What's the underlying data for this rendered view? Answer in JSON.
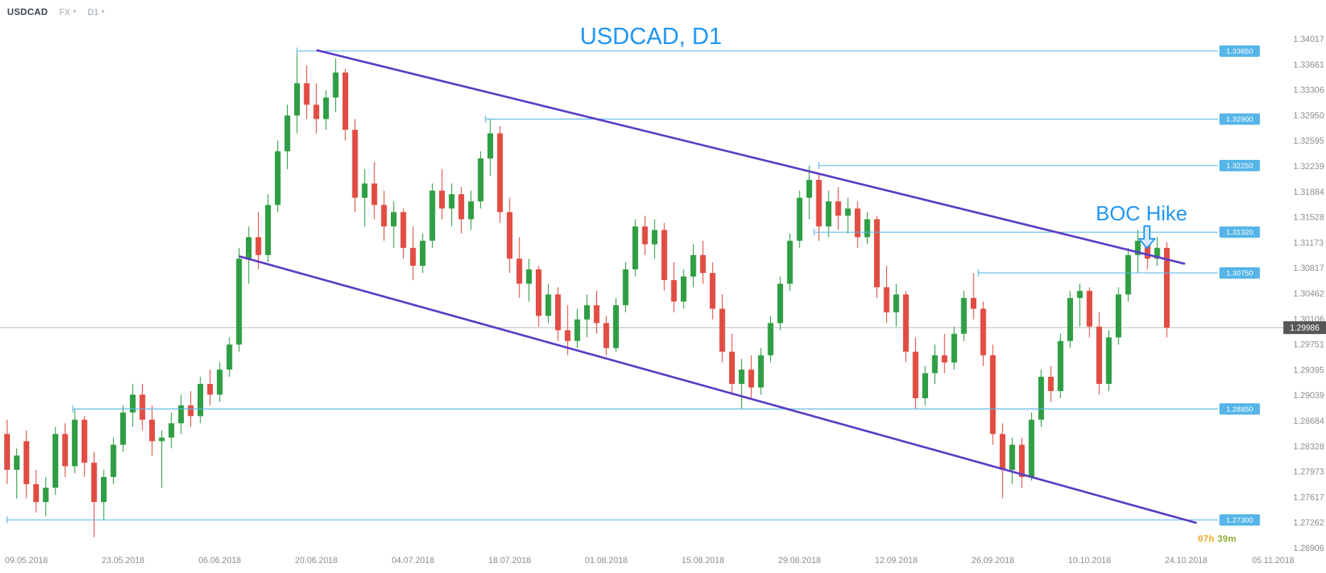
{
  "header": {
    "symbol": "USDCAD",
    "market_selector": "FX",
    "timeframe_selector": "D1"
  },
  "annotations": {
    "chart_title": "USDCAD, D1",
    "event_label": "BOC Hike"
  },
  "countdown": {
    "hours": "07h",
    "minutes": "39m"
  },
  "price_tag": {
    "value": "1.29986"
  },
  "colors": {
    "accent_blue": "#2196f3",
    "candle_up": "#2f9e44",
    "candle_down": "#e14d43",
    "level_blue": "#55b5e8",
    "trendline_purple": "#5d3fc4",
    "current_price_line_gray": "#b8b8b8",
    "price_tag_bg": "#575757",
    "axis_text_gray": "#8b8b8b",
    "countdown_hours_color": "#f5a623",
    "countdown_minutes_color": "#8fae3a"
  },
  "chart_data": {
    "type": "candlestick",
    "title": "USDCAD, D1",
    "symbol": "USDCAD",
    "timeframe": "D1",
    "annotations": [
      "USDCAD, D1",
      "BOC Hike"
    ],
    "current_price": 1.29986,
    "price_scale_labels": [
      "1.34017",
      "1.33661",
      "1.33306",
      "1.32950",
      "1.32595",
      "1.32239",
      "1.31884",
      "1.31528",
      "1.31173",
      "1.30817",
      "1.30462",
      "1.30106",
      "1.29751",
      "1.29395",
      "1.29039",
      "1.28684",
      "1.28328",
      "1.27973",
      "1.27617",
      "1.27262",
      "1.26906"
    ],
    "date_ticks": [
      {
        "label": "09.05.2018",
        "index": 2
      },
      {
        "label": "23.05.2018",
        "index": 12
      },
      {
        "label": "06.06.2018",
        "index": 22
      },
      {
        "label": "20.06.2018",
        "index": 32
      },
      {
        "label": "04.07.2018",
        "index": 42
      },
      {
        "label": "18.07.2018",
        "index": 52
      },
      {
        "label": "01.08.2018",
        "index": 62
      },
      {
        "label": "15.08.2018",
        "index": 72
      },
      {
        "label": "29.08.2018",
        "index": 82
      },
      {
        "label": "12.09.2018",
        "index": 92
      },
      {
        "label": "26.09.2018",
        "index": 102
      },
      {
        "label": "10.10.2018",
        "index": 112
      },
      {
        "label": "24.10.2018",
        "index": 122
      },
      {
        "label": "05.11.2018",
        "index": 131
      }
    ],
    "horizontal_levels": [
      {
        "label": "1.33850",
        "price": 1.3385,
        "start_index": 30
      },
      {
        "label": "1.32900",
        "price": 1.329,
        "start_index": 49.5
      },
      {
        "label": "1.32250",
        "price": 1.3225,
        "start_index": 84
      },
      {
        "label": "1.31320",
        "price": 1.3132,
        "start_index": 83.5
      },
      {
        "label": "1.30750",
        "price": 1.3075,
        "start_index": 100.5
      },
      {
        "label": "1.28850",
        "price": 1.2885,
        "start_index": 6.8
      },
      {
        "label": "1.27300",
        "price": 1.273,
        "start_index": 0
      }
    ],
    "trendlines": [
      {
        "name": "channel-upper",
        "from": {
          "index": 32.1,
          "price": 1.3386
        },
        "to": {
          "index": 121.8,
          "price": 1.3088
        }
      },
      {
        "name": "channel-lower",
        "from": {
          "index": 24.1,
          "price": 1.3098
        },
        "to": {
          "index": 123,
          "price": 1.2726
        }
      }
    ],
    "candles": [
      [
        1.285,
        1.287,
        1.278,
        1.28
      ],
      [
        1.28,
        1.283,
        1.276,
        1.282
      ],
      [
        1.284,
        1.2855,
        1.276,
        1.278
      ],
      [
        1.278,
        1.28,
        1.274,
        1.2755
      ],
      [
        1.2755,
        1.279,
        1.2735,
        1.2775
      ],
      [
        1.2775,
        1.286,
        1.2765,
        1.285
      ],
      [
        1.285,
        1.2865,
        1.279,
        1.2805
      ],
      [
        1.2805,
        1.2885,
        1.2795,
        1.287
      ],
      [
        1.287,
        1.2875,
        1.279,
        1.281
      ],
      [
        1.281,
        1.2825,
        1.2706,
        1.2755
      ],
      [
        1.2755,
        1.28,
        1.273,
        1.279
      ],
      [
        1.279,
        1.2845,
        1.278,
        1.2835
      ],
      [
        1.2835,
        1.289,
        1.2825,
        1.288
      ],
      [
        1.288,
        1.292,
        1.286,
        1.2905
      ],
      [
        1.2905,
        1.292,
        1.2855,
        1.287
      ],
      [
        1.287,
        1.289,
        1.282,
        1.284
      ],
      [
        1.284,
        1.2855,
        1.2775,
        1.2845
      ],
      [
        1.2845,
        1.288,
        1.283,
        1.2865
      ],
      [
        1.2865,
        1.2905,
        1.285,
        1.289
      ],
      [
        1.289,
        1.291,
        1.286,
        1.2875
      ],
      [
        1.2875,
        1.293,
        1.2865,
        1.292
      ],
      [
        1.292,
        1.294,
        1.289,
        1.2905
      ],
      [
        1.2905,
        1.295,
        1.2895,
        1.294
      ],
      [
        1.294,
        1.2985,
        1.293,
        1.2975
      ],
      [
        1.2975,
        1.311,
        1.2965,
        1.3095
      ],
      [
        1.3095,
        1.314,
        1.306,
        1.3125
      ],
      [
        1.3125,
        1.316,
        1.308,
        1.31
      ],
      [
        1.31,
        1.3185,
        1.309,
        1.317
      ],
      [
        1.317,
        1.326,
        1.316,
        1.3245
      ],
      [
        1.3245,
        1.331,
        1.322,
        1.3295
      ],
      [
        1.3295,
        1.3385,
        1.327,
        1.334
      ],
      [
        1.334,
        1.3365,
        1.329,
        1.331
      ],
      [
        1.331,
        1.334,
        1.327,
        1.329
      ],
      [
        1.329,
        1.333,
        1.3275,
        1.332
      ],
      [
        1.332,
        1.3375,
        1.33,
        1.3355
      ],
      [
        1.3355,
        1.336,
        1.326,
        1.3275
      ],
      [
        1.3275,
        1.329,
        1.316,
        1.318
      ],
      [
        1.318,
        1.322,
        1.314,
        1.32
      ],
      [
        1.32,
        1.323,
        1.315,
        1.317
      ],
      [
        1.317,
        1.319,
        1.312,
        1.314
      ],
      [
        1.314,
        1.3175,
        1.311,
        1.316
      ],
      [
        1.316,
        1.3165,
        1.3095,
        1.311
      ],
      [
        1.311,
        1.314,
        1.3065,
        1.3085
      ],
      [
        1.3085,
        1.313,
        1.3075,
        1.312
      ],
      [
        1.312,
        1.32,
        1.311,
        1.319
      ],
      [
        1.319,
        1.322,
        1.315,
        1.3165
      ],
      [
        1.3165,
        1.32,
        1.314,
        1.3185
      ],
      [
        1.3185,
        1.3195,
        1.313,
        1.315
      ],
      [
        1.315,
        1.319,
        1.3135,
        1.3175
      ],
      [
        1.3175,
        1.3245,
        1.3165,
        1.3235
      ],
      [
        1.3235,
        1.329,
        1.321,
        1.327
      ],
      [
        1.327,
        1.328,
        1.3145,
        1.316
      ],
      [
        1.316,
        1.318,
        1.3075,
        1.3095
      ],
      [
        1.3095,
        1.3125,
        1.304,
        1.306
      ],
      [
        1.306,
        1.3095,
        1.3035,
        1.308
      ],
      [
        1.308,
        1.3085,
        1.3,
        1.3015
      ],
      [
        1.3015,
        1.306,
        1.3005,
        1.3045
      ],
      [
        1.3045,
        1.3055,
        1.298,
        1.2995
      ],
      [
        1.2995,
        1.303,
        1.296,
        1.298
      ],
      [
        1.298,
        1.3025,
        1.297,
        1.301
      ],
      [
        1.301,
        1.3045,
        1.2985,
        1.303
      ],
      [
        1.303,
        1.305,
        1.299,
        1.3005
      ],
      [
        1.3005,
        1.3015,
        1.296,
        1.297
      ],
      [
        1.297,
        1.304,
        1.2965,
        1.303
      ],
      [
        1.303,
        1.309,
        1.302,
        1.308
      ],
      [
        1.308,
        1.315,
        1.307,
        1.314
      ],
      [
        1.314,
        1.3155,
        1.31,
        1.3115
      ],
      [
        1.3115,
        1.315,
        1.3095,
        1.3135
      ],
      [
        1.3135,
        1.3145,
        1.305,
        1.3065
      ],
      [
        1.3065,
        1.309,
        1.302,
        1.3035
      ],
      [
        1.3035,
        1.308,
        1.3025,
        1.307
      ],
      [
        1.307,
        1.3115,
        1.3055,
        1.31
      ],
      [
        1.31,
        1.312,
        1.306,
        1.3075
      ],
      [
        1.3075,
        1.309,
        1.301,
        1.3025
      ],
      [
        1.3025,
        1.3045,
        1.295,
        1.2965
      ],
      [
        1.2965,
        1.299,
        1.2905,
        1.292
      ],
      [
        1.292,
        1.2955,
        1.2885,
        1.294
      ],
      [
        1.294,
        1.296,
        1.29,
        1.2915
      ],
      [
        1.2915,
        1.297,
        1.2905,
        1.296
      ],
      [
        1.296,
        1.3015,
        1.295,
        1.3005
      ],
      [
        1.3005,
        1.307,
        1.2995,
        1.306
      ],
      [
        1.306,
        1.313,
        1.305,
        1.312
      ],
      [
        1.312,
        1.319,
        1.311,
        1.318
      ],
      [
        1.318,
        1.3225,
        1.315,
        1.3205
      ],
      [
        1.3205,
        1.3215,
        1.312,
        1.314
      ],
      [
        1.314,
        1.319,
        1.3125,
        1.3175
      ],
      [
        1.3175,
        1.3195,
        1.3135,
        1.3155
      ],
      [
        1.3155,
        1.318,
        1.313,
        1.3165
      ],
      [
        1.3165,
        1.3175,
        1.311,
        1.3125
      ],
      [
        1.3125,
        1.316,
        1.3115,
        1.315
      ],
      [
        1.315,
        1.3155,
        1.304,
        1.3055
      ],
      [
        1.3055,
        1.3085,
        1.3005,
        1.302
      ],
      [
        1.302,
        1.306,
        1.3,
        1.3045
      ],
      [
        1.3045,
        1.305,
        1.295,
        1.2965
      ],
      [
        1.2965,
        1.2985,
        1.2885,
        1.29
      ],
      [
        1.29,
        1.2945,
        1.289,
        1.2935
      ],
      [
        1.2935,
        1.2975,
        1.292,
        1.296
      ],
      [
        1.296,
        1.299,
        1.2935,
        1.295
      ],
      [
        1.295,
        1.3,
        1.294,
        1.299
      ],
      [
        1.299,
        1.305,
        1.298,
        1.304
      ],
      [
        1.304,
        1.3075,
        1.301,
        1.3025
      ],
      [
        1.3025,
        1.3035,
        1.2945,
        1.296
      ],
      [
        1.296,
        1.2975,
        1.2835,
        1.285
      ],
      [
        1.285,
        1.2865,
        1.276,
        1.28
      ],
      [
        1.28,
        1.2845,
        1.278,
        1.2835
      ],
      [
        1.2835,
        1.2845,
        1.2775,
        1.279
      ],
      [
        1.279,
        1.288,
        1.2785,
        1.287
      ],
      [
        1.287,
        1.294,
        1.286,
        1.293
      ],
      [
        1.293,
        1.2945,
        1.2895,
        1.291
      ],
      [
        1.291,
        1.299,
        1.29,
        1.298
      ],
      [
        1.298,
        1.305,
        1.297,
        1.304
      ],
      [
        1.304,
        1.306,
        1.3,
        1.305
      ],
      [
        1.305,
        1.3055,
        1.2985,
        1.3
      ],
      [
        1.3,
        1.302,
        1.2905,
        1.292
      ],
      [
        1.292,
        1.2995,
        1.291,
        1.2985
      ],
      [
        1.2985,
        1.3055,
        1.2975,
        1.3045
      ],
      [
        1.3045,
        1.311,
        1.3035,
        1.31
      ],
      [
        1.31,
        1.3135,
        1.3075,
        1.312
      ],
      [
        1.312,
        1.313,
        1.308,
        1.3095
      ],
      [
        1.3095,
        1.3125,
        1.3085,
        1.311
      ],
      [
        1.311,
        1.3118,
        1.2985,
        1.29986
      ]
    ]
  }
}
